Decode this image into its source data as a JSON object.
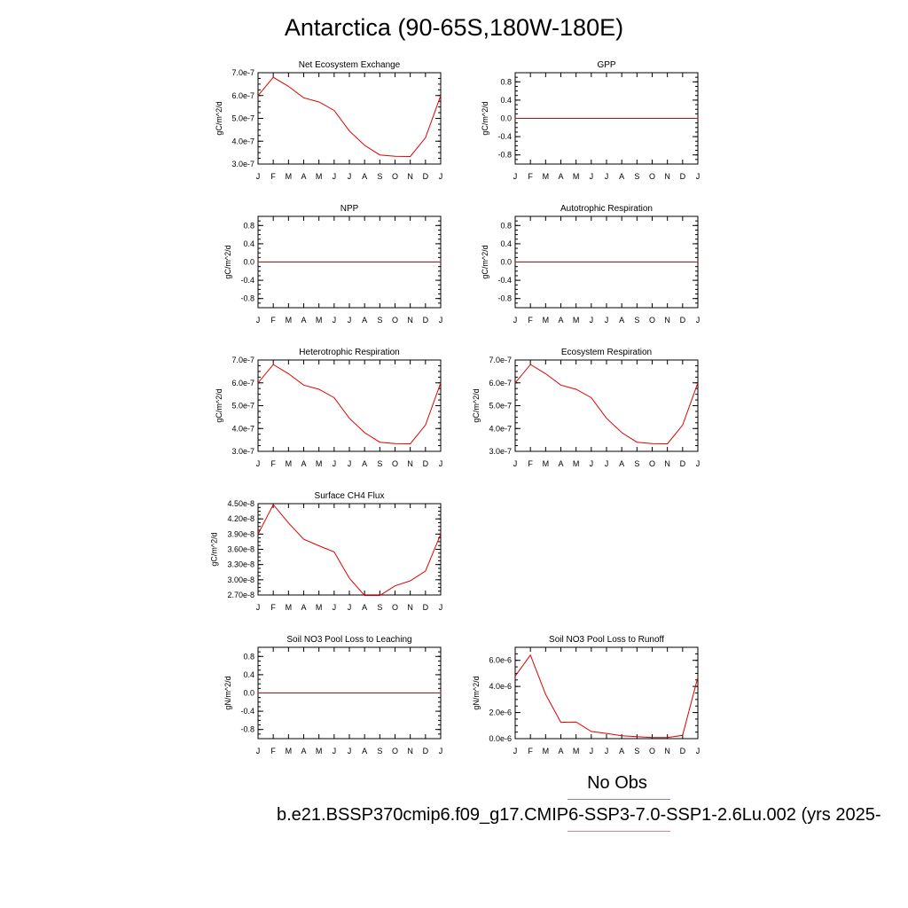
{
  "page": {
    "title": "Antarctica (90-65S,180W-180E)",
    "legend": {
      "obs_label": "No Obs",
      "case_label": "b.e21.BSSP370cmip6.f09_g17.CMIP6-SSP3-7.0-SSP1-2.6Lu.002 (yrs 2025-",
      "obs_color": "#7a7ff0",
      "case_color": "#f08080"
    }
  },
  "chart_data": [
    {
      "type": "line",
      "title": "Net Ecosystem Exchange",
      "ylabel": "gC/m^2/d",
      "xlabel": "",
      "categories": [
        "J",
        "F",
        "M",
        "A",
        "M",
        "J",
        "J",
        "A",
        "S",
        "O",
        "N",
        "D",
        "J"
      ],
      "ylim": [
        3e-07,
        7e-07
      ],
      "yticks": [
        "3.0e-7",
        "4.0e-7",
        "5.0e-7",
        "6.0e-7",
        "7.0e-7"
      ],
      "series": [
        {
          "color": "#e00000",
          "values": [
            6e-07,
            6.8e-07,
            6.4e-07,
            5.9e-07,
            5.72e-07,
            5.35e-07,
            4.45e-07,
            3.82e-07,
            3.4e-07,
            3.34e-07,
            3.33e-07,
            4.15e-07,
            6e-07
          ]
        }
      ]
    },
    {
      "type": "line",
      "title": "GPP",
      "ylabel": "gC/m^2/d",
      "xlabel": "",
      "categories": [
        "J",
        "F",
        "M",
        "A",
        "M",
        "J",
        "J",
        "A",
        "S",
        "O",
        "N",
        "D",
        "J"
      ],
      "ylim": [
        -1.0,
        1.0
      ],
      "yticks": [
        "-0.8",
        "-0.4",
        "0.0",
        "0.4",
        "0.8"
      ],
      "series": [
        {
          "color": "#e00000",
          "values": [
            0,
            0,
            0,
            0,
            0,
            0,
            0,
            0,
            0,
            0,
            0,
            0,
            0
          ]
        }
      ]
    },
    {
      "type": "line",
      "title": "NPP",
      "ylabel": "gC/m^2/d",
      "xlabel": "",
      "categories": [
        "J",
        "F",
        "M",
        "A",
        "M",
        "J",
        "J",
        "A",
        "S",
        "O",
        "N",
        "D",
        "J"
      ],
      "ylim": [
        -1.0,
        1.0
      ],
      "yticks": [
        "-0.8",
        "-0.4",
        "0.0",
        "0.4",
        "0.8"
      ],
      "series": [
        {
          "color": "#e00000",
          "values": [
            0,
            0,
            0,
            0,
            0,
            0,
            0,
            0,
            0,
            0,
            0,
            0,
            0
          ]
        }
      ]
    },
    {
      "type": "line",
      "title": "Autotrophic Respiration",
      "ylabel": "gC/m^2/d",
      "xlabel": "",
      "categories": [
        "J",
        "F",
        "M",
        "A",
        "M",
        "J",
        "J",
        "A",
        "S",
        "O",
        "N",
        "D",
        "J"
      ],
      "ylim": [
        -1.0,
        1.0
      ],
      "yticks": [
        "-0.8",
        "-0.4",
        "0.0",
        "0.4",
        "0.8"
      ],
      "series": [
        {
          "color": "#e00000",
          "values": [
            0,
            0,
            0,
            0,
            0,
            0,
            0,
            0,
            0,
            0,
            0,
            0,
            0
          ]
        }
      ]
    },
    {
      "type": "line",
      "title": "Heterotrophic Respiration",
      "ylabel": "gC/m^2/d",
      "xlabel": "",
      "categories": [
        "J",
        "F",
        "M",
        "A",
        "M",
        "J",
        "J",
        "A",
        "S",
        "O",
        "N",
        "D",
        "J"
      ],
      "ylim": [
        3e-07,
        7e-07
      ],
      "yticks": [
        "3.0e-7",
        "4.0e-7",
        "5.0e-7",
        "6.0e-7",
        "7.0e-7"
      ],
      "series": [
        {
          "color": "#e00000",
          "values": [
            6e-07,
            6.8e-07,
            6.4e-07,
            5.9e-07,
            5.72e-07,
            5.35e-07,
            4.45e-07,
            3.82e-07,
            3.4e-07,
            3.34e-07,
            3.33e-07,
            4.15e-07,
            6e-07
          ]
        }
      ]
    },
    {
      "type": "line",
      "title": "Ecosystem Respiration",
      "ylabel": "gC/m^2/d",
      "xlabel": "",
      "categories": [
        "J",
        "F",
        "M",
        "A",
        "M",
        "J",
        "J",
        "A",
        "S",
        "O",
        "N",
        "D",
        "J"
      ],
      "ylim": [
        3e-07,
        7e-07
      ],
      "yticks": [
        "3.0e-7",
        "4.0e-7",
        "5.0e-7",
        "6.0e-7",
        "7.0e-7"
      ],
      "series": [
        {
          "color": "#e00000",
          "values": [
            6e-07,
            6.8e-07,
            6.4e-07,
            5.9e-07,
            5.72e-07,
            5.35e-07,
            4.45e-07,
            3.82e-07,
            3.4e-07,
            3.34e-07,
            3.33e-07,
            4.15e-07,
            6e-07
          ]
        }
      ]
    },
    {
      "type": "line",
      "title": "Surface CH4 Flux",
      "ylabel": "gC/m^2/d",
      "xlabel": "",
      "categories": [
        "J",
        "F",
        "M",
        "A",
        "M",
        "J",
        "J",
        "A",
        "S",
        "O",
        "N",
        "D",
        "J"
      ],
      "ylim": [
        2.7e-08,
        4.5e-08
      ],
      "yticks": [
        "2.70e-8",
        "3.00e-8",
        "3.30e-8",
        "3.60e-8",
        "3.90e-8",
        "4.20e-8",
        "4.50e-8"
      ],
      "series": [
        {
          "color": "#e00000",
          "values": [
            3.9e-08,
            4.48e-08,
            4.12e-08,
            3.8e-08,
            3.67e-08,
            3.55e-08,
            3.03e-08,
            2.69e-08,
            2.69e-08,
            2.88e-08,
            2.98e-08,
            3.17e-08,
            3.9e-08
          ]
        }
      ]
    },
    {
      "type": "line",
      "title": "Soil NO3 Pool Loss to Leaching",
      "ylabel": "gN/m^2/d",
      "xlabel": "",
      "categories": [
        "J",
        "F",
        "M",
        "A",
        "M",
        "J",
        "J",
        "A",
        "S",
        "O",
        "N",
        "D",
        "J"
      ],
      "ylim": [
        -1.0,
        1.0
      ],
      "yticks": [
        "-0.8",
        "-0.4",
        "0.0",
        "0.4",
        "0.8"
      ],
      "series": [
        {
          "color": "#e00000",
          "values": [
            0,
            0,
            0,
            0,
            0,
            0,
            0,
            0,
            0,
            0,
            0,
            0,
            0
          ]
        }
      ]
    },
    {
      "type": "line",
      "title": "Soil NO3 Pool Loss to Runoff",
      "ylabel": "gN/m^2/d",
      "xlabel": "",
      "categories": [
        "J",
        "F",
        "M",
        "A",
        "M",
        "J",
        "J",
        "A",
        "S",
        "O",
        "N",
        "D",
        "J"
      ],
      "ylim": [
        0.0,
        7e-06
      ],
      "yticks": [
        "0.0e-6",
        "2.0e-6",
        "4.0e-6",
        "6.0e-6"
      ],
      "series": [
        {
          "color": "#e00000",
          "values": [
            4.8e-06,
            6.4e-06,
            3.4e-06,
            1.25e-06,
            1.28e-06,
            5.5e-07,
            4e-07,
            2.2e-07,
            1.5e-07,
            8e-08,
            8e-08,
            2.5e-07,
            4.7e-06
          ]
        }
      ]
    }
  ]
}
